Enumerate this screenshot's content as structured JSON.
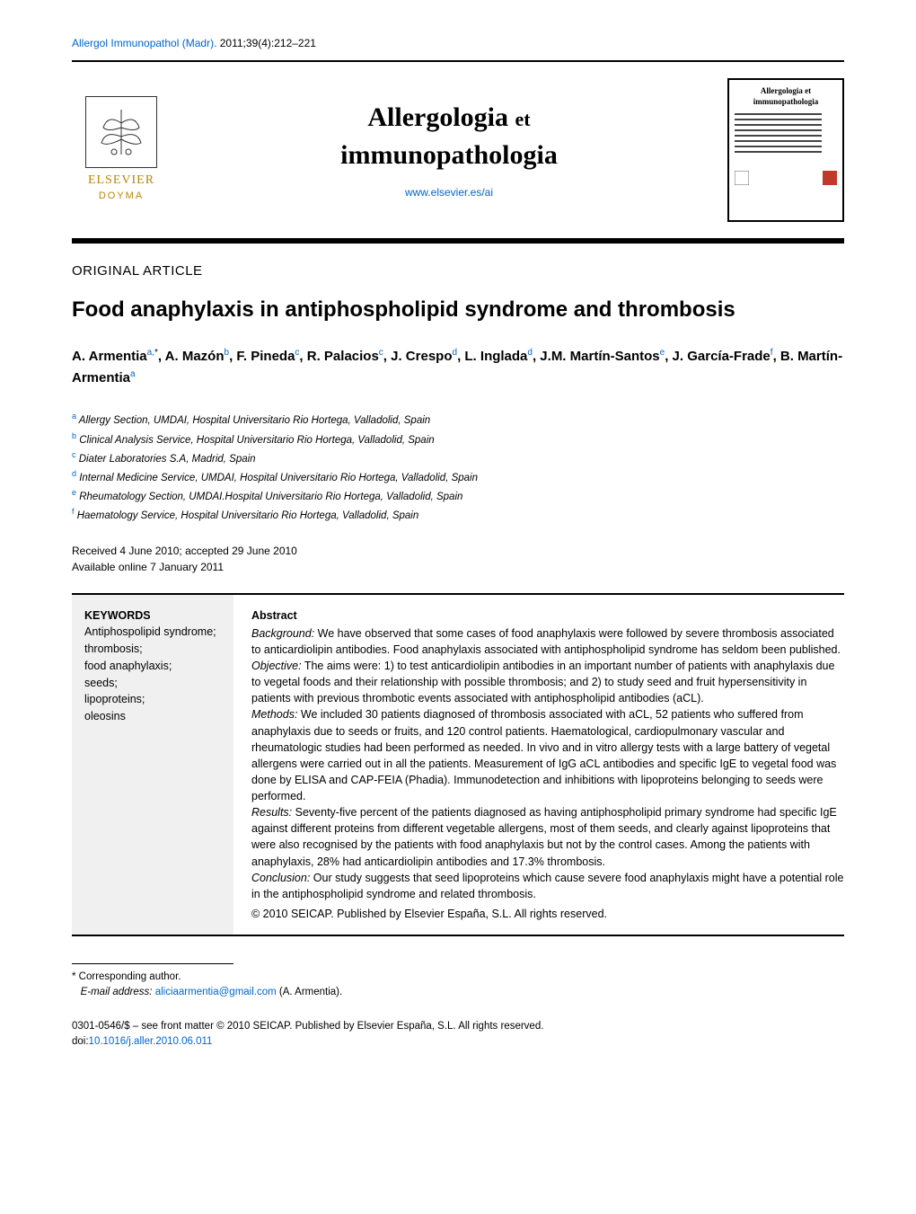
{
  "citation": {
    "journal_abbrev": "Allergol Immunopathol (Madr).",
    "year_vol_issue": "2011;39(4)",
    "pages": ":212–221"
  },
  "header": {
    "publisher_top": "ELSEVIER",
    "publisher_bottom": "DOYMA",
    "journal_line1": "Allergologia",
    "journal_et": "et",
    "journal_line2": "immunopathologia",
    "url": "www.elsevier.es/ai",
    "cover_title1": "Allergologia",
    "cover_et": "et",
    "cover_title2": "immunopathologia"
  },
  "article_type": "ORIGINAL ARTICLE",
  "article_title": "Food anaphylaxis in antiphospholipid syndrome and thrombosis",
  "authors_html": "A. Armentia<sup>a,</sup><sup class=\"aff-star\">*</sup>, A. Mazón<sup>b</sup>, F. Pineda<sup>c</sup>, R. Palacios<sup>c</sup>, J. Crespo<sup>d</sup>, L. Inglada<sup>d</sup>, J.M. Martín-Santos<sup>e</sup>, J. García-Frade<sup>f</sup>, B. Martín-Armentia<sup>a</sup>",
  "affiliations": [
    {
      "sup": "a",
      "text": " Allergy Section, UMDAI, Hospital Universitario Rio Hortega, Valladolid, Spain"
    },
    {
      "sup": "b",
      "text": " Clinical Analysis Service, Hospital Universitario Rio Hortega, Valladolid, Spain"
    },
    {
      "sup": "c",
      "text": " Diater Laboratories S.A, Madrid, Spain"
    },
    {
      "sup": "d",
      "text": " Internal Medicine Service, UMDAI, Hospital Universitario Rio Hortega, Valladolid, Spain"
    },
    {
      "sup": "e",
      "text": " Rheumatology Section, UMDAI.Hospital Universitario Rio Hortega, Valladolid, Spain"
    },
    {
      "sup": "f",
      "text": " Haematology Service, Hospital Universitario Rio Hortega, Valladolid, Spain"
    }
  ],
  "dates": {
    "received_accepted": "Received 4 June 2010; accepted 29 June 2010",
    "online": "Available online 7 January 2011"
  },
  "keywords": {
    "heading": "KEYWORDS",
    "items": "Antiphospolipid syndrome;\nthrombosis;\nfood anaphylaxis;\nseeds;\nlipoproteins;\noleosins"
  },
  "abstract": {
    "heading": "Abstract",
    "background_label": "Background:",
    "background": " We have observed that some cases of food anaphylaxis were followed by severe thrombosis associated to anticardiolipin antibodies. Food anaphylaxis associated with antiphospholipid syndrome has seldom been published.",
    "objective_label": "Objective:",
    "objective": " The aims were: 1) to test anticardiolipin antibodies in an important number of patients with anaphylaxis due to vegetal foods and their relationship with possible thrombosis; and 2) to study seed and fruit hypersensitivity in patients with previous thrombotic events associated with antiphospholipid antibodies (aCL).",
    "methods_label": "Methods:",
    "methods": " We included 30 patients diagnosed of thrombosis associated with aCL, 52 patients who suffered from anaphylaxis due to seeds or fruits, and 120 control patients. Haematological, cardiopulmonary vascular and rheumatologic studies had been performed as needed. In vivo and in vitro allergy tests with a large battery of vegetal allergens were carried out in all the patients. Measurement of IgG aCL antibodies and specific IgE to vegetal food was done by ELISA and CAP-FEIA (Phadia). Immunodetection and inhibitions with lipoproteins belonging to seeds were performed.",
    "results_label": "Results:",
    "results": " Seventy-five percent of the patients diagnosed as having antiphospholipid primary syndrome had specific IgE against different proteins from different vegetable allergens, most of them seeds, and clearly against lipoproteins that were also recognised by the patients with food anaphylaxis but not by the control cases. Among the patients with anaphylaxis, 28% had anticardiolipin antibodies and 17.3% thrombosis.",
    "conclusion_label": "Conclusion:",
    "conclusion": " Our study suggests that seed lipoproteins which cause severe food anaphylaxis might have a potential role in the antiphospholipid syndrome and related thrombosis.",
    "copyright": "© 2010 SEICAP. Published by Elsevier España, S.L. All rights reserved."
  },
  "corresponding": {
    "label": "* Corresponding author.",
    "email_label": "E-mail address:",
    "email": "aliciaarmentia@gmail.com",
    "email_paren": " (A. Armentia)."
  },
  "footer": {
    "issn_line": "0301-0546/$ – see front matter © 2010 SEICAP. Published by Elsevier España, S.L. All rights reserved.",
    "doi_label": "doi:",
    "doi": "10.1016/j.aller.2010.06.011"
  },
  "colors": {
    "link": "#0066cc",
    "publisher": "#b8860b",
    "keywords_bg": "#f0f0f0",
    "text": "#000000",
    "cover_badge": "#c0392b"
  }
}
